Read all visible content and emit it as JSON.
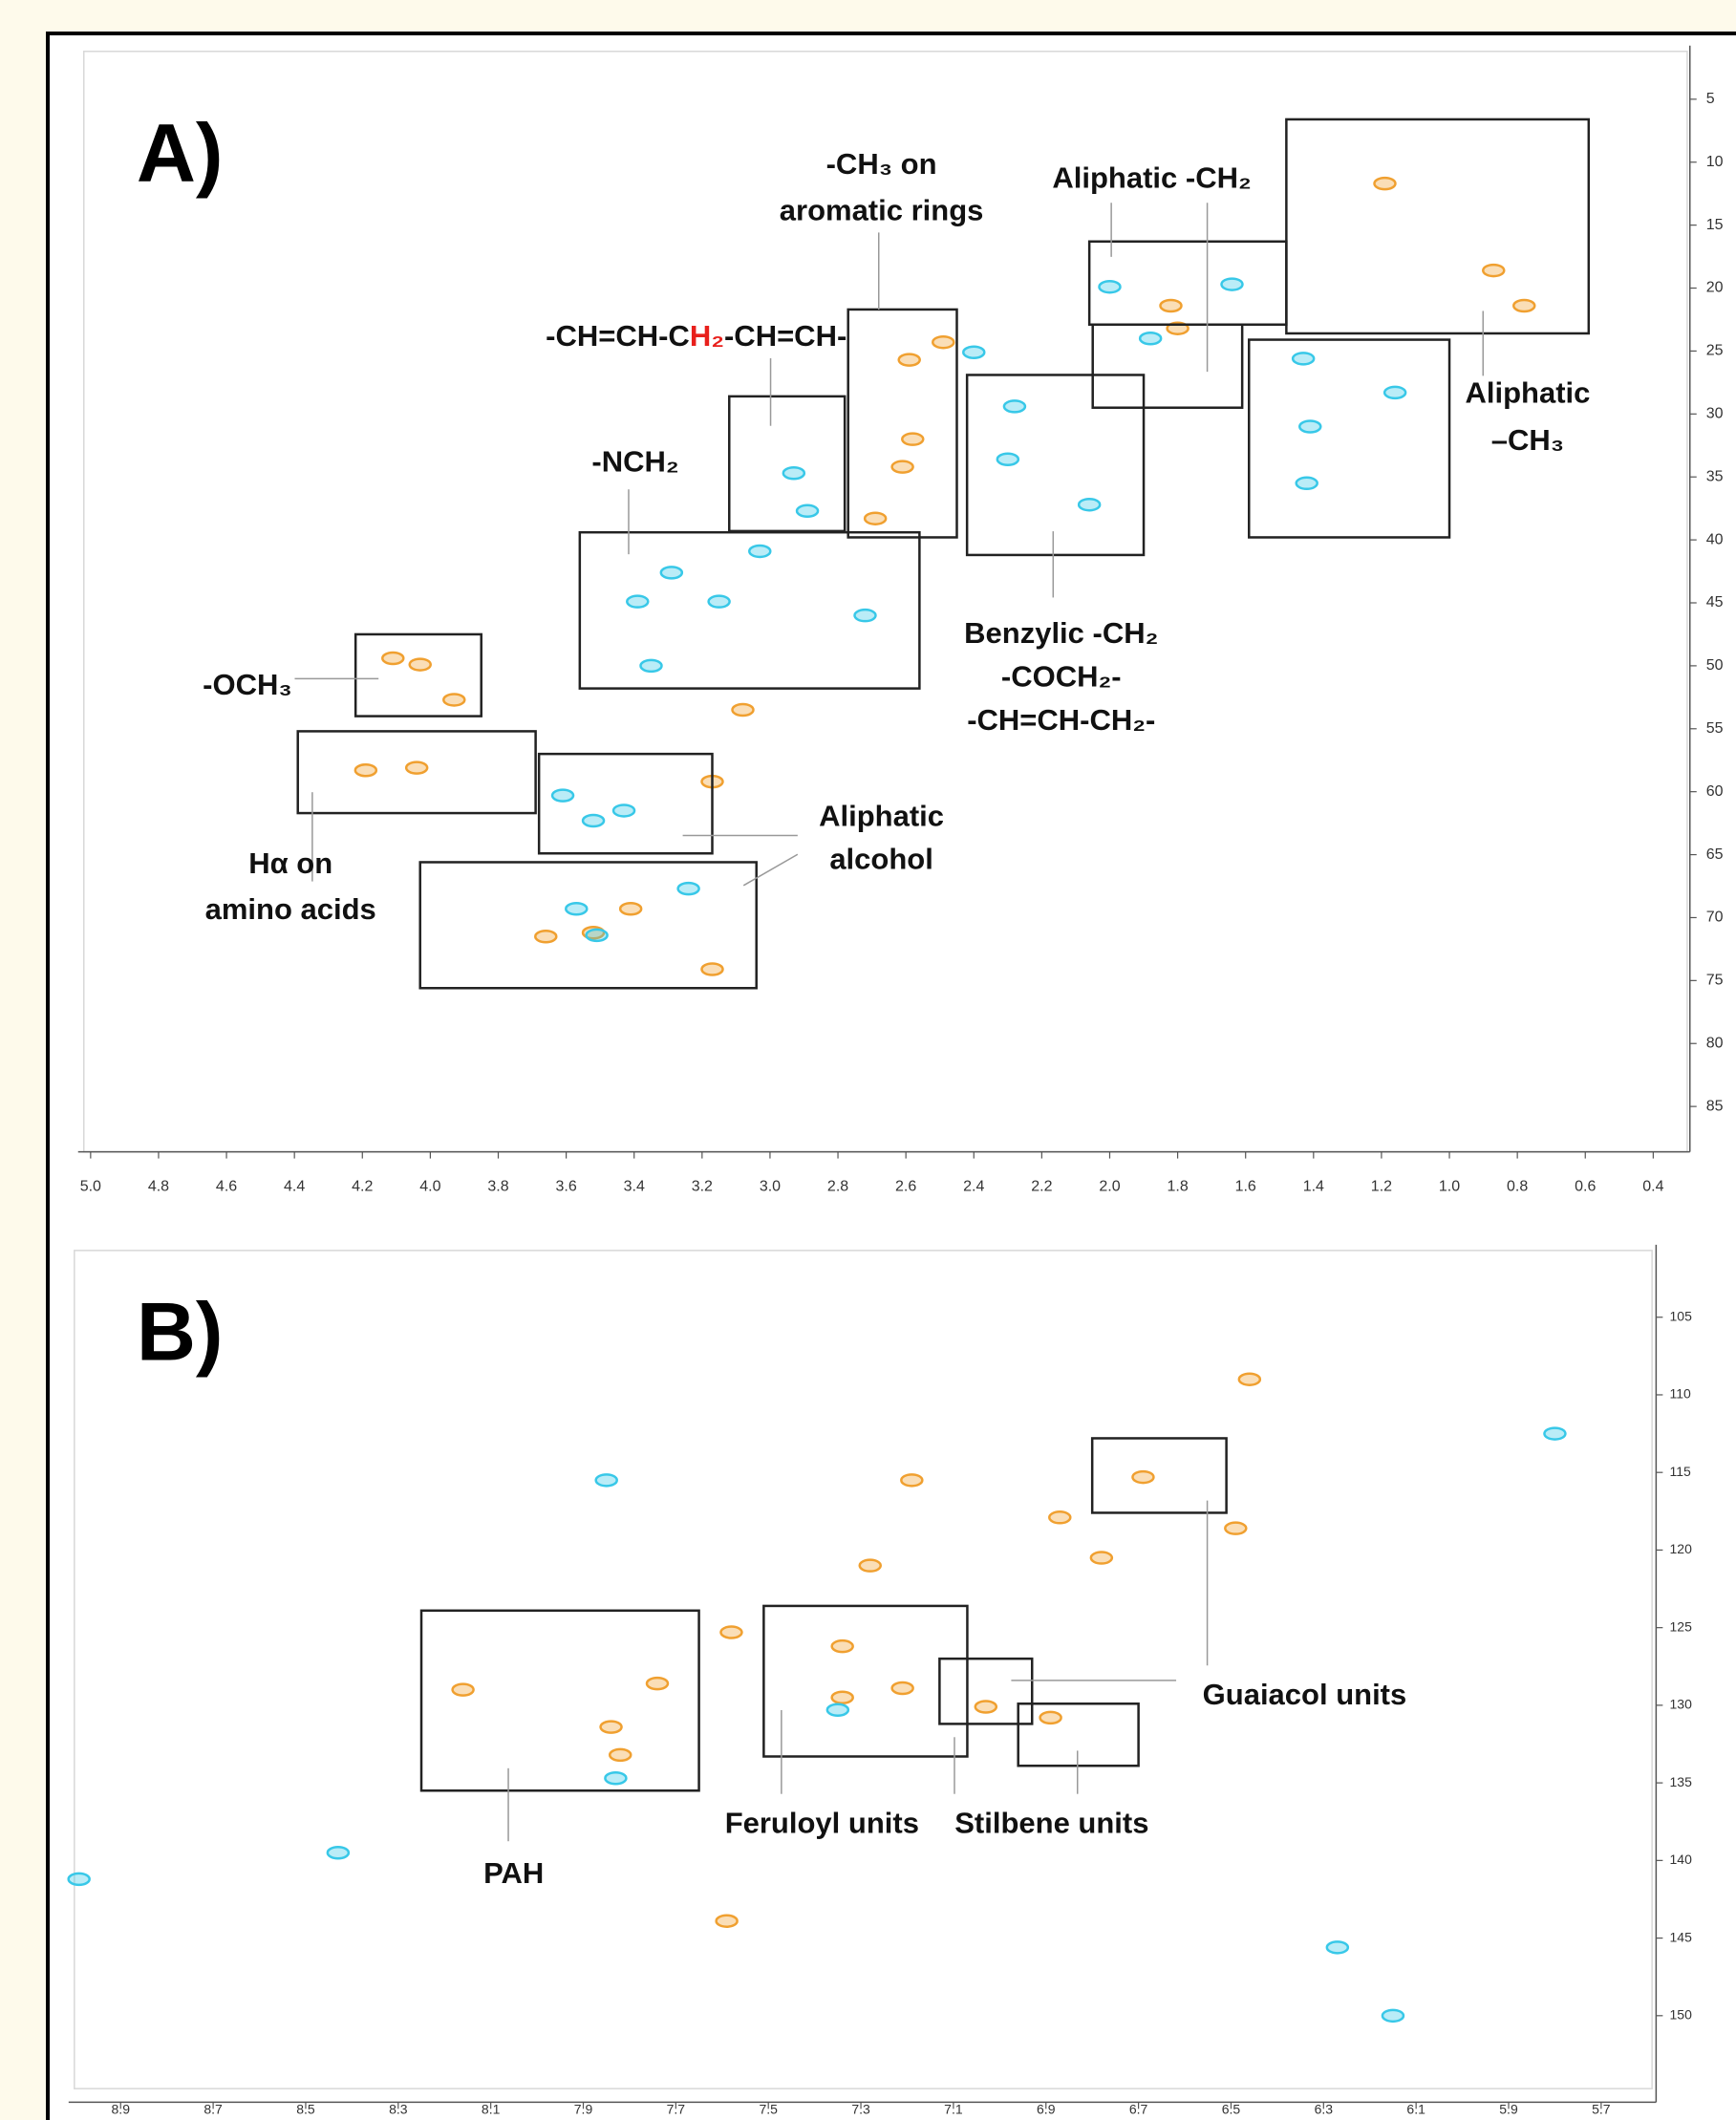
{
  "chart_data": [
    {
      "type": "scatter",
      "panel_label": "A)",
      "xlim": [
        5.02,
        0.3
      ],
      "ylim": [
        1.2,
        88.6
      ],
      "xticks": [
        {
          "value": 5,
          "label": "5.0"
        },
        4.8,
        4.6,
        4.4,
        4.2,
        {
          "value": 4,
          "label": "4.0"
        },
        3.8,
        3.6,
        3.4,
        3.2,
        {
          "value": 3,
          "label": "3.0"
        },
        2.8,
        2.6,
        2.4,
        2.2,
        {
          "value": 2,
          "label": "2.0"
        },
        1.8,
        1.6,
        1.4,
        1.2,
        {
          "value": 1,
          "label": "1.0"
        },
        0.8,
        0.6,
        0.4
      ],
      "yticks": [
        5,
        10,
        15,
        20,
        25,
        30,
        35,
        40,
        45,
        50,
        55,
        60,
        65,
        70,
        75,
        80,
        85
      ],
      "series": [
        {
          "color": "#f0a030",
          "x": [
            1.19,
            0.87,
            0.78,
            1.82,
            1.8,
            2.49,
            2.59,
            2.61,
            2.58,
            4.04,
            4.19,
            3.66,
            3.52,
            3.41,
            3.17,
            3.08,
            3.17,
            2.69,
            3.93,
            4.11,
            4.03
          ],
          "values": [
            11.7,
            18.6,
            21.4,
            21.4,
            23.2,
            24.3,
            25.7,
            34.2,
            32.0,
            58.1,
            58.3,
            71.5,
            71.2,
            69.3,
            74.1,
            53.5,
            59.2,
            38.3,
            52.7,
            49.4,
            49.9
          ]
        },
        {
          "color": "#38c8e8",
          "x": [
            2.0,
            1.88,
            1.64,
            1.43,
            1.16,
            1.41,
            1.42,
            2.28,
            2.06,
            2.3,
            2.93,
            2.89,
            3.03,
            3.15,
            3.29,
            2.72,
            3.35,
            3.61,
            3.52,
            3.43,
            3.57,
            3.24,
            3.51,
            2.4,
            3.39
          ],
          "values": [
            19.9,
            24.0,
            19.7,
            25.6,
            28.3,
            31.0,
            35.5,
            29.4,
            37.2,
            33.6,
            34.7,
            37.7,
            40.9,
            44.9,
            42.6,
            46.0,
            50.0,
            60.3,
            62.3,
            61.5,
            69.3,
            67.7,
            71.4,
            25.1,
            44.9
          ]
        }
      ],
      "regions": [
        {
          "x": [
            1.48,
            0.59
          ],
          "y": [
            6.6,
            23.6
          ]
        },
        {
          "x": [
            2.06,
            1.48
          ],
          "y": [
            16.3,
            22.9
          ]
        },
        {
          "x": [
            2.05,
            1.61
          ],
          "y": [
            22.9,
            29.5
          ]
        },
        {
          "x": [
            1.59,
            1.0
          ],
          "y": [
            24.1,
            39.8
          ]
        },
        {
          "x": [
            2.42,
            1.9
          ],
          "y": [
            26.9,
            41.2
          ]
        },
        {
          "x": [
            2.77,
            2.45
          ],
          "y": [
            21.7,
            39.8
          ]
        },
        {
          "x": [
            3.12,
            2.78
          ],
          "y": [
            28.6,
            39.3
          ]
        },
        {
          "x": [
            3.56,
            2.56
          ],
          "y": [
            39.4,
            51.8
          ]
        },
        {
          "x": [
            4.22,
            3.85
          ],
          "y": [
            47.5,
            54.0
          ]
        },
        {
          "x": [
            4.39,
            3.69
          ],
          "y": [
            55.2,
            61.7
          ]
        },
        {
          "x": [
            3.68,
            3.17
          ],
          "y": [
            57.0,
            64.9
          ]
        },
        {
          "x": [
            4.03,
            3.04
          ],
          "y": [
            65.6,
            75.6
          ]
        }
      ],
      "annotations": [
        {
          "lines": [
            "-CH₃ on",
            "aromatic rings"
          ]
        },
        {
          "lines": [
            "Aliphatic -CH₂"
          ]
        },
        {
          "lines": [
            [
              "-CH=CH-C",
              "H₂",
              "-CH=CH-"
            ]
          ],
          "highlight_color": "#e8201c"
        },
        {
          "lines": [
            "-NCH₂"
          ]
        },
        {
          "lines": [
            "Aliphatic",
            "–CH₃"
          ]
        },
        {
          "lines": [
            "Benzylic -CH₂",
            "-COCH₂-",
            "-CH=CH-CH₂-"
          ]
        },
        {
          "lines": [
            "-OCH₃"
          ]
        },
        {
          "lines": [
            "Hα on",
            "amino acids"
          ]
        },
        {
          "lines": [
            "Aliphatic",
            "alcohol"
          ]
        }
      ]
    },
    {
      "type": "scatter",
      "panel_label": "B)",
      "xlim": [
        9.0,
        5.59
      ],
      "ylim": [
        100.7,
        154.7
      ],
      "xticks": [
        8.9,
        8.7,
        8.5,
        8.3,
        8.1,
        7.9,
        7.7,
        7.5,
        7.3,
        7.1,
        6.9,
        6.7,
        6.5,
        6.3,
        6.1,
        5.9,
        5.7
      ],
      "yticks": [
        105,
        110,
        115,
        120,
        125,
        130,
        135,
        140,
        145,
        150
      ],
      "series": [
        {
          "color": "#f0a030",
          "x": [
            6.69,
            6.49,
            7.74,
            7.82,
            7.84,
            8.16,
            7.34,
            7.34,
            7.21,
            7.03,
            6.89,
            7.19,
            7.28,
            6.78,
            7.59,
            6.46,
            6.87,
            7.58
          ],
          "values": [
            115.3,
            118.6,
            128.6,
            133.2,
            131.4,
            129.0,
            126.2,
            129.5,
            128.9,
            130.1,
            130.8,
            115.5,
            121.0,
            120.5,
            143.9,
            109.0,
            117.9,
            125.3
          ]
        },
        {
          "color": "#38c8e8",
          "x": [
            8.99,
            6.15,
            8.43,
            6.27,
            5.8,
            7.85,
            7.35,
            7.83
          ],
          "values": [
            141.2,
            150.0,
            139.5,
            145.6,
            112.5,
            115.5,
            130.3,
            134.7
          ]
        }
      ],
      "regions": [
        {
          "x": [
            6.8,
            6.51
          ],
          "y": [
            112.8,
            117.6
          ]
        },
        {
          "x": [
            8.25,
            7.65
          ],
          "y": [
            123.9,
            135.5
          ]
        },
        {
          "x": [
            7.51,
            7.07
          ],
          "y": [
            123.6,
            133.3
          ]
        },
        {
          "x": [
            7.13,
            6.93
          ],
          "y": [
            127.0,
            131.2
          ]
        },
        {
          "x": [
            6.96,
            6.7
          ],
          "y": [
            129.9,
            133.9
          ]
        }
      ],
      "annotations": [
        {
          "lines": [
            "Guaiacol units"
          ]
        },
        {
          "lines": [
            "PAH"
          ]
        },
        {
          "lines": [
            "Feruloyl units"
          ]
        },
        {
          "lines": [
            "Stilbene units"
          ]
        }
      ]
    }
  ]
}
